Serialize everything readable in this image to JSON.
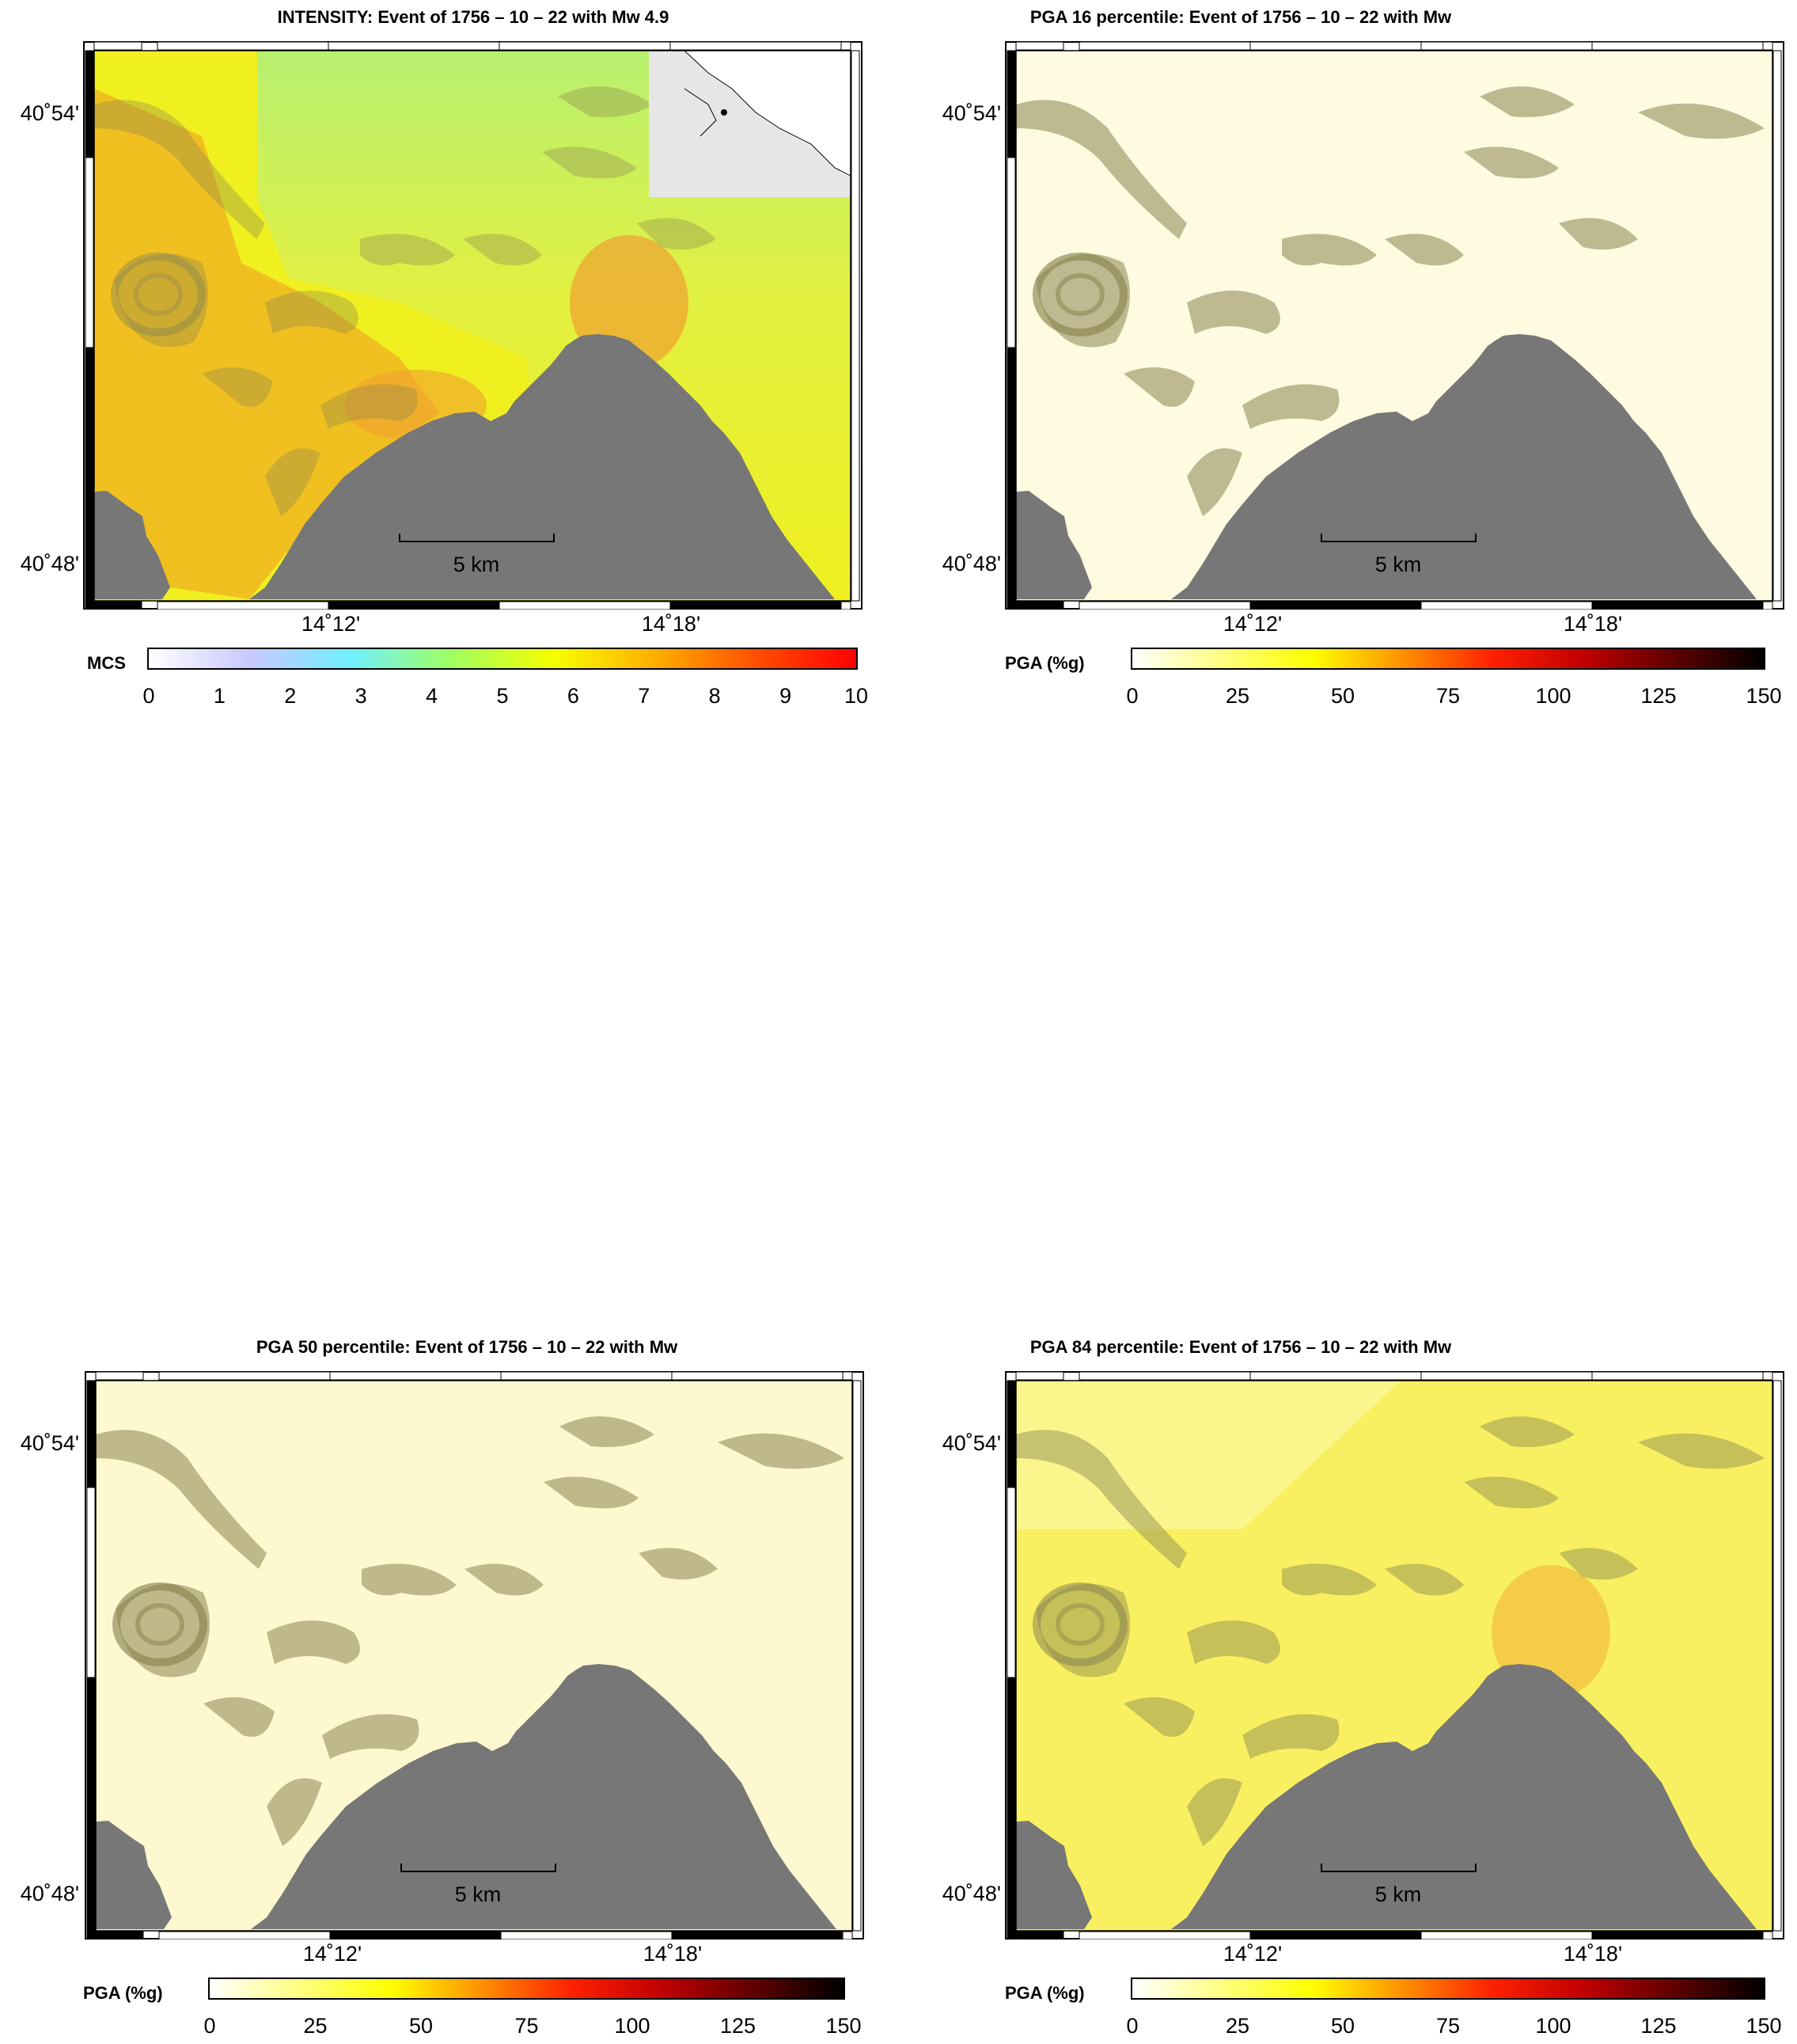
{
  "panels": [
    {
      "title": "INTENSITY: Event of 1756 – 10 – 22 with Mw 4.9",
      "colorbar": {
        "label": "MCS",
        "ticks": [
          "0",
          "1",
          "2",
          "3",
          "4",
          "5",
          "6",
          "7",
          "8",
          "9",
          "10"
        ],
        "range": [
          0,
          10
        ],
        "colors": [
          "#ffffff",
          "#c8c8ff",
          "#70f0ff",
          "#a0ff60",
          "#f5ff00",
          "#ffb000",
          "#ff5000",
          "#ff0000"
        ]
      }
    },
    {
      "title": "PGA 16 percentile: Event of 1756 – 10 – 22 with Mw",
      "colorbar": {
        "label": "PGA (%g)",
        "ticks": [
          "0",
          "25",
          "50",
          "75",
          "100",
          "125",
          "150"
        ],
        "range": [
          0,
          150
        ],
        "colors": [
          "#ffffff",
          "#ffff80",
          "#ffff00",
          "#ff9000",
          "#ff2000",
          "#c00000",
          "#600000",
          "#000000"
        ]
      }
    },
    {
      "title": "PGA 50 percentile: Event of 1756 – 10 – 22 with Mw",
      "colorbar": {
        "label": "PGA (%g)",
        "ticks": [
          "0",
          "25",
          "50",
          "75",
          "100",
          "125",
          "150"
        ],
        "range": [
          0,
          150
        ],
        "colors": [
          "#ffffff",
          "#ffff80",
          "#ffff00",
          "#ff9000",
          "#ff2000",
          "#c00000",
          "#600000",
          "#000000"
        ]
      }
    },
    {
      "title": "PGA 84 percentile: Event of 1756 – 10 – 22 with Mw",
      "colorbar": {
        "label": "PGA (%g)",
        "ticks": [
          "0",
          "25",
          "50",
          "75",
          "100",
          "125",
          "150"
        ],
        "range": [
          0,
          150
        ],
        "colors": [
          "#ffffff",
          "#ffff80",
          "#ffff00",
          "#ff9000",
          "#ff2000",
          "#c00000",
          "#600000",
          "#000000"
        ]
      }
    }
  ],
  "axes": {
    "lat_labels": [
      "40˚54'",
      "40˚48'"
    ],
    "lon_labels": [
      "14˚12'",
      "14˚18'"
    ]
  },
  "scale_bar": "5 km",
  "map_colors": {
    "sea": "#777777",
    "intensity_base": "#f0f020",
    "intensity_low": "#b8f070",
    "intensity_high": "#f0b020",
    "pga16_base": "#fefbe0",
    "pga50_base": "#fdf8d0",
    "pga84_base": "#f8f060",
    "relief_shadow": "#8a8450"
  }
}
